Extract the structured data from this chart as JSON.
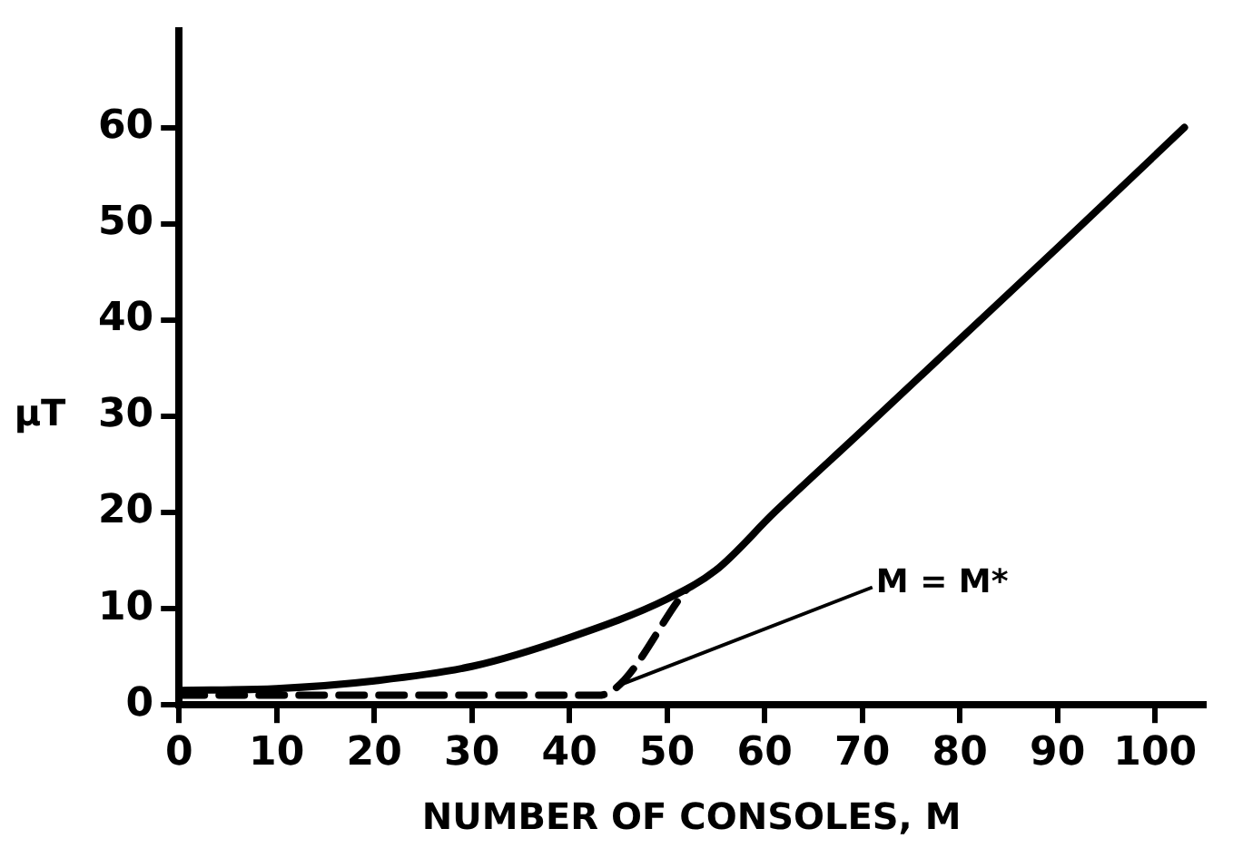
{
  "chart_data": {
    "type": "line",
    "xlabel": "NUMBER OF CONSOLES, M",
    "ylabel": "μT",
    "xlim": [
      0,
      105
    ],
    "ylim": [
      0,
      70
    ],
    "xticks": [
      0,
      10,
      20,
      30,
      40,
      50,
      60,
      70,
      80,
      90,
      100
    ],
    "yticks": [
      0,
      10,
      20,
      30,
      40,
      50,
      60
    ],
    "grid": false,
    "legend": false,
    "marker": "none",
    "series": [
      {
        "color": "#000000",
        "line_style": "solid",
        "x": [
          0,
          10,
          20,
          30,
          40,
          50,
          55,
          61,
          70,
          80,
          90,
          103
        ],
        "values": [
          1.5,
          1.7,
          2.5,
          4,
          7,
          11,
          14,
          20,
          28.5,
          38,
          47.5,
          60
        ]
      },
      {
        "color": "#000000",
        "line_style": "dashed",
        "x": [
          0,
          43,
          52
        ],
        "values": [
          1,
          1,
          12
        ]
      }
    ],
    "annotations": [
      {
        "text": "M = M*",
        "x": 45,
        "y": 2
      }
    ]
  }
}
